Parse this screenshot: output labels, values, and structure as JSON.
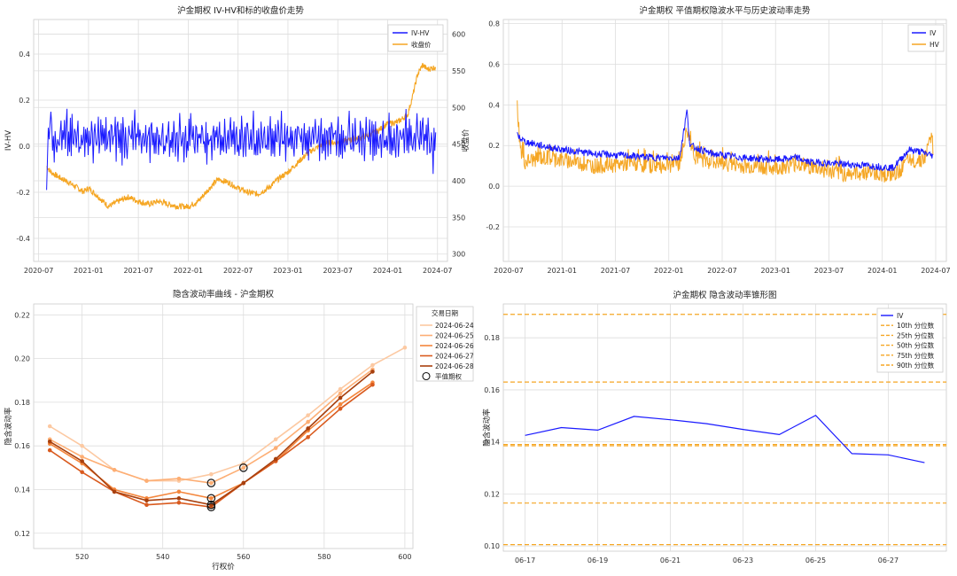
{
  "colors": {
    "iv": "#1a1aff",
    "hv": "#f5a623",
    "close": "#f5a623",
    "red": "#d62728",
    "blue_tick": "#1f77b4",
    "smile": [
      "#fcc9a2",
      "#fdae74",
      "#f4863c",
      "#d95a1e",
      "#a8400e"
    ],
    "cone": "#f5a623"
  },
  "chart_data": [
    {
      "id": "ivhv",
      "type": "line",
      "title": "沪金期权 IV-HV和标的收盘价走势",
      "ylabel": "IV-HV",
      "y2label": "收盘价",
      "ylim": [
        -0.5,
        0.55
      ],
      "y2lim": [
        290,
        620
      ],
      "yticks": [
        "0.4",
        "0.2",
        "0.0",
        "-0.2",
        "-0.4"
      ],
      "ytick_values": [
        0.4,
        0.2,
        0.0,
        -0.2,
        -0.4
      ],
      "y2ticks": [
        "600",
        "550",
        "500",
        "450",
        "400",
        "350",
        "300"
      ],
      "y2tick_values": [
        600,
        550,
        500,
        450,
        400,
        350,
        300
      ],
      "xticks": [
        "2020-07",
        "2021-01",
        "2021-07",
        "2022-01",
        "2022-07",
        "2023-01",
        "2023-07",
        "2024-01",
        "2024-07"
      ],
      "xrange": [
        2020.45,
        2024.6
      ],
      "x_start": 2020.58,
      "x_end": 2024.48,
      "legend": [
        "IV-HV",
        "收盘价"
      ],
      "close_anchors": [
        [
          2020.58,
          420
        ],
        [
          2020.62,
          412
        ],
        [
          2020.7,
          405
        ],
        [
          2020.8,
          398
        ],
        [
          2020.95,
          385
        ],
        [
          2021.0,
          390
        ],
        [
          2021.1,
          378
        ],
        [
          2021.2,
          365
        ],
        [
          2021.3,
          372
        ],
        [
          2021.4,
          378
        ],
        [
          2021.5,
          372
        ],
        [
          2021.6,
          368
        ],
        [
          2021.7,
          372
        ],
        [
          2021.8,
          368
        ],
        [
          2021.9,
          365
        ],
        [
          2022.0,
          365
        ],
        [
          2022.1,
          372
        ],
        [
          2022.2,
          388
        ],
        [
          2022.3,
          402
        ],
        [
          2022.4,
          398
        ],
        [
          2022.5,
          390
        ],
        [
          2022.6,
          384
        ],
        [
          2022.7,
          382
        ],
        [
          2022.8,
          390
        ],
        [
          2022.9,
          402
        ],
        [
          2023.0,
          412
        ],
        [
          2023.1,
          425
        ],
        [
          2023.2,
          438
        ],
        [
          2023.3,
          446
        ],
        [
          2023.4,
          452
        ],
        [
          2023.5,
          452
        ],
        [
          2023.6,
          455
        ],
        [
          2023.7,
          458
        ],
        [
          2023.8,
          462
        ],
        [
          2023.9,
          468
        ],
        [
          2024.0,
          478
        ],
        [
          2024.1,
          480
        ],
        [
          2024.2,
          490
        ],
        [
          2024.25,
          515
        ],
        [
          2024.3,
          545
        ],
        [
          2024.35,
          558
        ],
        [
          2024.4,
          552
        ],
        [
          2024.48,
          555
        ]
      ],
      "ivhv_pattern": [
        0.02,
        0.09,
        -0.03,
        0.06,
        0.12,
        -0.02,
        0.05,
        0.0,
        0.08,
        -0.04,
        0.1,
        0.03,
        -0.01,
        0.07,
        0.04,
        -0.03,
        0.06,
        0.11,
        0.01,
        0.03
      ],
      "ivhv_start": [
        -0.19,
        -0.05,
        0.08,
        0.03,
        0.1,
        0.15
      ]
    },
    {
      "id": "ivhist",
      "type": "line",
      "title": "沪金期权 平值期权隐波水平与历史波动率走势",
      "ylim": [
        -0.37,
        0.82
      ],
      "yticks": [
        "0.8",
        "0.6",
        "0.4",
        "0.2",
        "0.0",
        "-0.2"
      ],
      "ytick_values": [
        0.8,
        0.6,
        0.4,
        0.2,
        0.0,
        -0.2
      ],
      "xticks": [
        "2020-07",
        "2021-01",
        "2021-07",
        "2022-01",
        "2022-07",
        "2023-01",
        "2023-07",
        "2024-01",
        "2024-07"
      ],
      "xrange": [
        2020.45,
        2024.6
      ],
      "x_start": 2020.58,
      "x_end": 2024.48,
      "legend": [
        "IV",
        "HV"
      ],
      "iv_anchors": [
        [
          2020.58,
          0.25
        ],
        [
          2020.65,
          0.22
        ],
        [
          2020.8,
          0.2
        ],
        [
          2021.0,
          0.18
        ],
        [
          2021.3,
          0.16
        ],
        [
          2021.6,
          0.15
        ],
        [
          2021.9,
          0.14
        ],
        [
          2022.1,
          0.14
        ],
        [
          2022.17,
          0.37
        ],
        [
          2022.2,
          0.2
        ],
        [
          2022.4,
          0.16
        ],
        [
          2022.7,
          0.14
        ],
        [
          2023.0,
          0.13
        ],
        [
          2023.2,
          0.14
        ],
        [
          2023.3,
          0.12
        ],
        [
          2023.6,
          0.11
        ],
        [
          2023.9,
          0.1
        ],
        [
          2024.1,
          0.09
        ],
        [
          2024.25,
          0.18
        ],
        [
          2024.35,
          0.17
        ],
        [
          2024.48,
          0.15
        ]
      ],
      "hv_anchors": [
        [
          2020.58,
          0.4
        ],
        [
          2020.61,
          0.18
        ],
        [
          2020.65,
          0.12
        ],
        [
          2020.8,
          0.14
        ],
        [
          2021.0,
          0.13
        ],
        [
          2021.3,
          0.1
        ],
        [
          2021.6,
          0.11
        ],
        [
          2021.9,
          0.1
        ],
        [
          2022.1,
          0.11
        ],
        [
          2022.17,
          0.28
        ],
        [
          2022.25,
          0.14
        ],
        [
          2022.4,
          0.12
        ],
        [
          2022.7,
          0.1
        ],
        [
          2023.0,
          0.09
        ],
        [
          2023.2,
          0.11
        ],
        [
          2023.3,
          0.1
        ],
        [
          2023.6,
          0.06
        ],
        [
          2023.9,
          0.07
        ],
        [
          2024.1,
          0.05
        ],
        [
          2024.25,
          0.12
        ],
        [
          2024.4,
          0.14
        ],
        [
          2024.46,
          0.26
        ],
        [
          2024.48,
          0.08
        ]
      ]
    },
    {
      "id": "smile",
      "type": "line",
      "title": "隐含波动率曲线 - 沪金期权",
      "xlabel": "行权价",
      "ylabel": "隐含波动率",
      "xlim": [
        508,
        602
      ],
      "ylim": [
        0.113,
        0.225
      ],
      "xticks": [
        "520",
        "540",
        "560",
        "580",
        "600"
      ],
      "xtick_values": [
        520,
        540,
        560,
        580,
        600
      ],
      "yticks": [
        "0.22",
        "0.20",
        "0.18",
        "0.16",
        "0.14",
        "0.12"
      ],
      "ytick_values": [
        0.22,
        0.2,
        0.18,
        0.16,
        0.14,
        0.12
      ],
      "legend_title": "交易日期",
      "atm_label": "平值期权",
      "strikes": [
        512,
        520,
        528,
        536,
        544,
        552,
        560,
        568,
        576,
        584,
        592,
        600
      ],
      "series": [
        {
          "name": "2024-06-24",
          "values": [
            0.169,
            0.16,
            0.149,
            0.144,
            0.144,
            0.147,
            0.152,
            0.163,
            0.174,
            0.186,
            0.197,
            0.205
          ]
        },
        {
          "name": "2024-06-25",
          "values": [
            0.163,
            0.155,
            0.149,
            0.144,
            0.145,
            0.143,
            0.15,
            0.159,
            0.171,
            0.184,
            0.195,
            null
          ]
        },
        {
          "name": "2024-06-26",
          "values": [
            0.161,
            0.152,
            0.14,
            0.136,
            0.139,
            0.136,
            0.143,
            0.153,
            0.167,
            0.179,
            0.189,
            null
          ]
        },
        {
          "name": "2024-06-27",
          "values": [
            0.158,
            0.148,
            0.139,
            0.133,
            0.134,
            0.132,
            0.143,
            0.153,
            0.164,
            0.177,
            0.188,
            null
          ]
        },
        {
          "name": "2024-06-28",
          "values": [
            0.162,
            0.153,
            0.139,
            0.135,
            0.136,
            0.133,
            0.143,
            0.154,
            0.168,
            0.182,
            0.194,
            null
          ]
        }
      ],
      "atm_points": [
        [
          552,
          0.143
        ],
        [
          560,
          0.15
        ],
        [
          552,
          0.136
        ],
        [
          552,
          0.132
        ],
        [
          552,
          0.133
        ]
      ]
    },
    {
      "id": "cone",
      "type": "line",
      "title": "沪金期权 隐含波动率锥形图",
      "ylabel": "隐含波动率",
      "ylim": [
        0.098,
        0.193
      ],
      "yticks": [
        "0.18",
        "0.16",
        "0.14",
        "0.12",
        "0.10"
      ],
      "ytick_values": [
        0.18,
        0.16,
        0.14,
        0.12,
        0.1
      ],
      "xticks": [
        "06-17",
        "06-19",
        "06-21",
        "06-23",
        "06-25",
        "06-27"
      ],
      "xtick_values": [
        0,
        2,
        4,
        6,
        8,
        10
      ],
      "xlim": [
        -0.6,
        11.6
      ],
      "legend": [
        "IV",
        "10th 分位数",
        "25th 分位数",
        "50th 分位数",
        "75th 分位数",
        "90th 分位数"
      ],
      "iv_x": [
        0,
        1,
        2,
        3,
        4,
        5,
        6,
        7,
        8,
        9,
        10,
        11
      ],
      "iv_values": [
        0.1425,
        0.1455,
        0.1445,
        0.1498,
        0.1485,
        0.147,
        0.1448,
        0.1428,
        0.1502,
        0.1355,
        0.135,
        0.132
      ],
      "percentiles": [
        0.1005,
        0.1165,
        0.1385,
        0.163,
        0.189
      ],
      "percentile_extra": 0.139
    }
  ]
}
